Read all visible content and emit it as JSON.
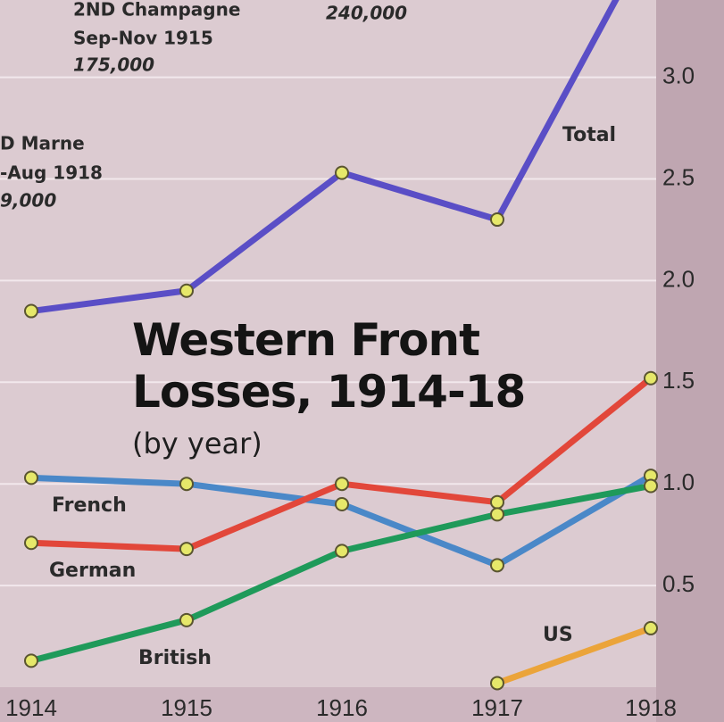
{
  "chart_data": {
    "type": "line",
    "title": "Western Front Losses, 1914-18",
    "subtitle": "(by year)",
    "categories": [
      "1914",
      "1915",
      "1916",
      "1917",
      "1918"
    ],
    "series": [
      {
        "name": "Total",
        "color": "#5a4ec6",
        "values": [
          1.85,
          1.95,
          2.53,
          2.3,
          3.7
        ]
      },
      {
        "name": "French",
        "color": "#4a88c8",
        "values": [
          1.03,
          1.0,
          0.9,
          0.6,
          1.04
        ]
      },
      {
        "name": "German",
        "color": "#e2473a",
        "values": [
          0.71,
          0.68,
          1.0,
          0.91,
          1.52
        ]
      },
      {
        "name": "British",
        "color": "#1f9a5a",
        "values": [
          0.13,
          0.33,
          0.67,
          0.85,
          0.99
        ]
      },
      {
        "name": "US",
        "color": "#eba43a",
        "values": [
          null,
          null,
          null,
          0.02,
          0.29
        ]
      }
    ],
    "ylim": [
      0,
      3.38
    ],
    "yticks": [
      0.5,
      {
        "value": 1,
        "label": "1.0"
      },
      1.5,
      {
        "value": 2,
        "label": "2.0"
      },
      2.5,
      {
        "value": 3,
        "label": "3.0"
      }
    ],
    "grid": true,
    "annotations": [
      "2ND Champagne",
      "Sep-Nov 1915",
      "175,000",
      "240,000",
      "D Marne",
      "-Aug 1918",
      "9,000"
    ]
  }
}
